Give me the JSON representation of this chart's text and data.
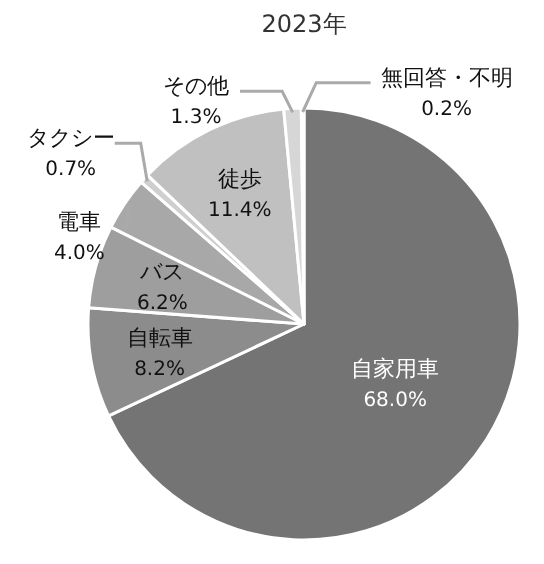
{
  "chart_data": {
    "type": "pie",
    "title": "2023年",
    "categories": [
      "自家用車",
      "自転車",
      "バス",
      "電車",
      "タクシー",
      "徒歩",
      "その他",
      "無回答・不明"
    ],
    "values": [
      68.0,
      8.2,
      6.2,
      4.0,
      0.7,
      11.4,
      1.3,
      0.2
    ],
    "colors": [
      "#747474",
      "#8c8c8c",
      "#9e9e9e",
      "#a8a8a8",
      "#cfcfcf",
      "#c0c0c0",
      "#d6d6d6",
      "#f2f2f2"
    ],
    "value_labels": [
      "68.0%",
      "8.2%",
      "6.2%",
      "4.0%",
      "0.7%",
      "11.4%",
      "1.3%",
      "0.2%"
    ]
  }
}
